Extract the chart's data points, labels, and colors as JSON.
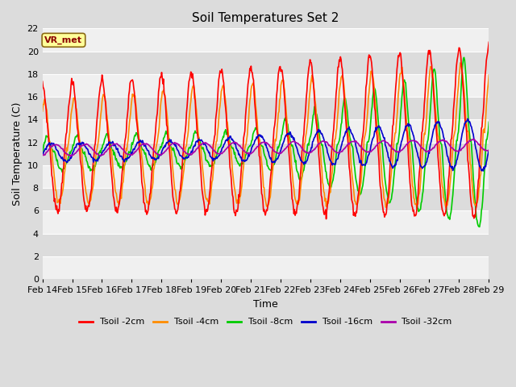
{
  "title": "Soil Temperatures Set 2",
  "xlabel": "Time",
  "ylabel": "Soil Temperature (C)",
  "ylim": [
    0,
    22
  ],
  "yticks": [
    0,
    2,
    4,
    6,
    8,
    10,
    12,
    14,
    16,
    18,
    20,
    22
  ],
  "x_labels": [
    "Feb 14",
    "Feb 15",
    "Feb 16",
    "Feb 17",
    "Feb 18",
    "Feb 19",
    "Feb 20",
    "Feb 21",
    "Feb 22",
    "Feb 23",
    "Feb 24",
    "Feb 25",
    "Feb 26",
    "Feb 27",
    "Feb 28",
    "Feb 29"
  ],
  "annotation_text": "VR_met",
  "annotation_color": "#8B0000",
  "annotation_bg": "#FFFF99",
  "line_colors": {
    "Tsoil -2cm": "#FF0000",
    "Tsoil -4cm": "#FF8C00",
    "Tsoil -8cm": "#00CC00",
    "Tsoil -16cm": "#0000CC",
    "Tsoil -32cm": "#AA00AA"
  },
  "bg_color": "#DCDCDC",
  "plot_bg_light": "#F0F0F0",
  "plot_bg_dark": "#DCDCDC",
  "title_fontsize": 11,
  "axis_label_fontsize": 9,
  "tick_fontsize": 8,
  "figwidth": 6.4,
  "figheight": 4.8,
  "dpi": 100
}
